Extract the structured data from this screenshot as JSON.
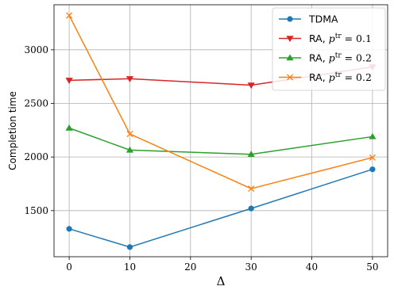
{
  "chart_data": {
    "type": "line",
    "xlabel": "Δ",
    "ylabel": "Completion time",
    "x_ticks": [
      0,
      10,
      20,
      30,
      40,
      50
    ],
    "y_ticks": [
      1500,
      2000,
      2500,
      3000
    ],
    "xlim": [
      -2.5,
      52.5
    ],
    "ylim": [
      1070,
      3420
    ],
    "grid": true,
    "legend_position": "top-right",
    "series": [
      {
        "name": "TDMA",
        "legend": {
          "prefix": "TDMA",
          "math": "",
          "sup": "",
          "rest": ""
        },
        "color": "#1f77b4",
        "marker": "circle",
        "x": [
          0,
          10,
          30,
          50
        ],
        "values": [
          1330,
          1160,
          1520,
          1885
        ]
      },
      {
        "name": "RA, p^tr = 0.1",
        "legend": {
          "prefix": "RA, ",
          "math": "p",
          "sup": "tr",
          "rest": " = 0.1"
        },
        "color": "#d62728",
        "marker": "triangle-down",
        "x": [
          0,
          10,
          30,
          50
        ],
        "values": [
          2715,
          2730,
          2670,
          2840
        ]
      },
      {
        "name": "RA, p^tr = 0.2",
        "legend": {
          "prefix": "RA, ",
          "math": "p",
          "sup": "tr",
          "rest": " = 0.2"
        },
        "color": "#2ca02c",
        "marker": "triangle-up",
        "x": [
          0,
          10,
          30,
          50
        ],
        "values": [
          2270,
          2065,
          2025,
          2190
        ]
      },
      {
        "name": "RA, p^tr = 0.2",
        "legend": {
          "prefix": "RA, ",
          "math": "p",
          "sup": "tr",
          "rest": " = 0.2"
        },
        "color": "#ff7f0e",
        "marker": "x",
        "x": [
          0,
          10,
          30,
          50
        ],
        "values": [
          3320,
          2215,
          1705,
          1995
        ]
      }
    ]
  }
}
